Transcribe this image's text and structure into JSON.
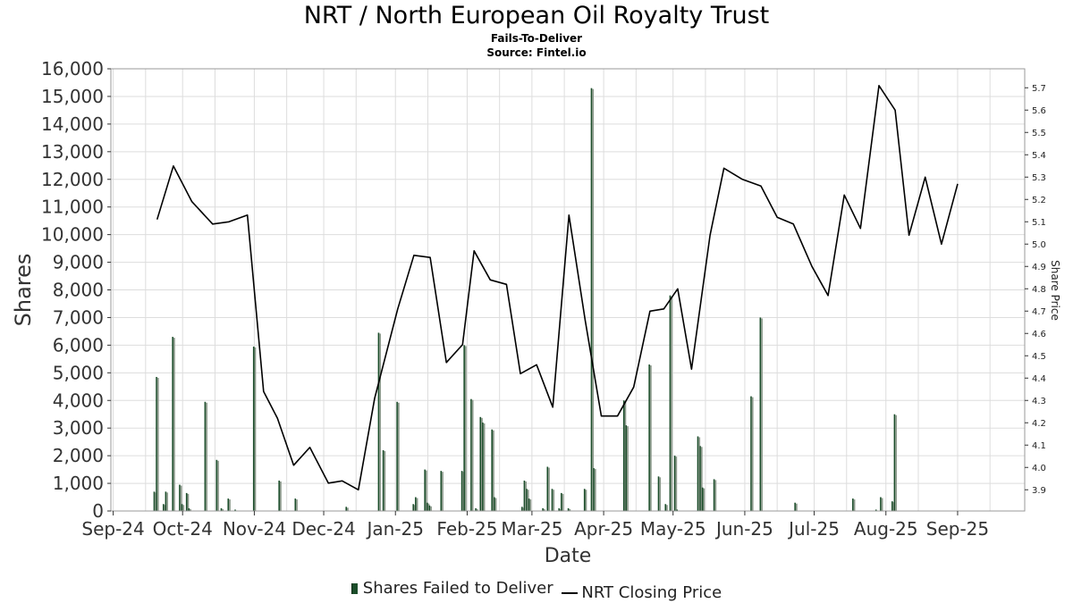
{
  "header": {
    "title": "NRT / North European Oil Royalty Trust",
    "subtitle": "Fails-To-Deliver",
    "source": "Source: Fintel.io"
  },
  "legend": {
    "bars_label": "Shares Failed to Deliver",
    "line_label": "NRT Closing Price"
  },
  "colors": {
    "bar": "#1b4d2a",
    "bar_shade": "#8c9a8c",
    "line": "#000000",
    "grid": "#dddddd",
    "frame": "#999999"
  },
  "chart_data": {
    "type": "bar",
    "xlabel": "Date",
    "ylabel": "Shares",
    "y2label": "Share Price",
    "ylim": [
      0,
      16000
    ],
    "y2lim": [
      3.805,
      5.785
    ],
    "grid": true,
    "legend_position": "bottom",
    "x_tick_labels": [
      "Sep-24",
      "Oct-24",
      "Nov-24",
      "Dec-24",
      "Jan-25",
      "Feb-25",
      "Mar-25",
      "Apr-25",
      "May-25",
      "Jun-25",
      "Jul-25",
      "Aug-25",
      "Sep-25"
    ],
    "y_tick_labels": [
      "0",
      "1,000",
      "2,000",
      "3,000",
      "4,000",
      "5,000",
      "6,000",
      "7,000",
      "8,000",
      "9,000",
      "10,000",
      "11,000",
      "12,000",
      "13,000",
      "14,000",
      "15,000",
      "16,000"
    ],
    "y2_tick_labels": [
      "3.9",
      "4.0",
      "4.1",
      "4.2",
      "4.3",
      "4.4",
      "4.5",
      "4.6",
      "4.7",
      "4.8",
      "4.9",
      "5.0",
      "5.1",
      "5.2",
      "5.3",
      "5.4",
      "5.5",
      "5.6",
      "5.7"
    ],
    "x_range": [
      "2024-08-31",
      "2025-09-30"
    ],
    "series": [
      {
        "name": "Shares Failed to Deliver",
        "type": "bar",
        "points": [
          [
            "2024-09-19",
            700
          ],
          [
            "2024-09-20",
            4850
          ],
          [
            "2024-09-23",
            250
          ],
          [
            "2024-09-24",
            700
          ],
          [
            "2024-09-27",
            6300
          ],
          [
            "2024-09-30",
            950
          ],
          [
            "2024-10-01",
            250
          ],
          [
            "2024-10-03",
            650
          ],
          [
            "2024-10-04",
            100
          ],
          [
            "2024-10-11",
            3950
          ],
          [
            "2024-10-16",
            1850
          ],
          [
            "2024-10-18",
            100
          ],
          [
            "2024-10-21",
            450
          ],
          [
            "2024-10-24",
            50
          ],
          [
            "2024-11-01",
            5950
          ],
          [
            "2024-11-12",
            1100
          ],
          [
            "2024-11-19",
            450
          ],
          [
            "2024-12-11",
            150
          ],
          [
            "2024-12-25",
            6450
          ],
          [
            "2024-12-27",
            2200
          ],
          [
            "2025-01-02",
            3950
          ],
          [
            "2025-01-09",
            250
          ],
          [
            "2025-01-10",
            500
          ],
          [
            "2025-01-14",
            1500
          ],
          [
            "2025-01-15",
            300
          ],
          [
            "2025-01-16",
            200
          ],
          [
            "2025-01-21",
            1450
          ],
          [
            "2025-01-30",
            1450
          ],
          [
            "2025-01-31",
            6000
          ],
          [
            "2025-02-03",
            4050
          ],
          [
            "2025-02-05",
            100
          ],
          [
            "2025-02-07",
            3400
          ],
          [
            "2025-02-08",
            3200
          ],
          [
            "2025-02-12",
            2950
          ],
          [
            "2025-02-13",
            500
          ],
          [
            "2025-02-25",
            150
          ],
          [
            "2025-02-26",
            1100
          ],
          [
            "2025-02-27",
            800
          ],
          [
            "2025-02-28",
            450
          ],
          [
            "2025-03-06",
            100
          ],
          [
            "2025-03-08",
            1600
          ],
          [
            "2025-03-10",
            800
          ],
          [
            "2025-03-13",
            100
          ],
          [
            "2025-03-14",
            650
          ],
          [
            "2025-03-17",
            100
          ],
          [
            "2025-03-24",
            800
          ],
          [
            "2025-03-27",
            15300
          ],
          [
            "2025-03-28",
            1550
          ],
          [
            "2025-04-10",
            4000
          ],
          [
            "2025-04-11",
            3100
          ],
          [
            "2025-04-21",
            5300
          ],
          [
            "2025-04-25",
            1250
          ],
          [
            "2025-04-28",
            250
          ],
          [
            "2025-04-30",
            7800
          ],
          [
            "2025-05-02",
            2000
          ],
          [
            "2025-05-03",
            50
          ],
          [
            "2025-05-12",
            2700
          ],
          [
            "2025-05-13",
            2350
          ],
          [
            "2025-05-14",
            850
          ],
          [
            "2025-05-19",
            1150
          ],
          [
            "2025-06-04",
            4150
          ],
          [
            "2025-06-08",
            7000
          ],
          [
            "2025-06-23",
            300
          ],
          [
            "2025-07-18",
            450
          ],
          [
            "2025-07-28",
            50
          ],
          [
            "2025-07-30",
            500
          ],
          [
            "2025-08-04",
            350
          ],
          [
            "2025-08-05",
            3500
          ]
        ]
      },
      {
        "name": "NRT Closing Price",
        "type": "line",
        "points": [
          [
            "2024-09-20",
            5.11
          ],
          [
            "2024-09-27",
            5.35
          ],
          [
            "2024-10-05",
            5.19
          ],
          [
            "2024-10-14",
            5.09
          ],
          [
            "2024-10-21",
            5.1
          ],
          [
            "2024-10-29",
            5.13
          ],
          [
            "2024-11-05",
            4.34
          ],
          [
            "2024-11-11",
            4.22
          ],
          [
            "2024-11-18",
            4.01
          ],
          [
            "2024-11-25",
            4.09
          ],
          [
            "2024-12-03",
            3.93
          ],
          [
            "2024-12-09",
            3.94
          ],
          [
            "2024-12-16",
            3.9
          ],
          [
            "2024-12-23",
            4.31
          ],
          [
            "2025-01-02",
            4.71
          ],
          [
            "2025-01-09",
            4.95
          ],
          [
            "2025-01-16",
            4.94
          ],
          [
            "2025-01-23",
            4.47
          ],
          [
            "2025-01-30",
            4.55
          ],
          [
            "2025-02-04",
            4.97
          ],
          [
            "2025-02-11",
            4.84
          ],
          [
            "2025-02-18",
            4.82
          ],
          [
            "2025-02-24",
            4.42
          ],
          [
            "2025-03-03",
            4.46
          ],
          [
            "2025-03-10",
            4.27
          ],
          [
            "2025-03-17",
            5.13
          ],
          [
            "2025-03-24",
            4.66
          ],
          [
            "2025-03-31",
            4.23
          ],
          [
            "2025-04-07",
            4.23
          ],
          [
            "2025-04-14",
            4.36
          ],
          [
            "2025-04-21",
            4.7
          ],
          [
            "2025-04-27",
            4.71
          ],
          [
            "2025-05-03",
            4.8
          ],
          [
            "2025-05-09",
            4.44
          ],
          [
            "2025-05-17",
            5.04
          ],
          [
            "2025-05-23",
            5.34
          ],
          [
            "2025-05-31",
            5.29
          ],
          [
            "2025-06-08",
            5.26
          ],
          [
            "2025-06-15",
            5.12
          ],
          [
            "2025-06-22",
            5.09
          ],
          [
            "2025-06-30",
            4.9
          ],
          [
            "2025-07-07",
            4.77
          ],
          [
            "2025-07-14",
            5.22
          ],
          [
            "2025-07-21",
            5.07
          ],
          [
            "2025-07-29",
            5.71
          ],
          [
            "2025-08-05",
            5.6
          ],
          [
            "2025-08-11",
            5.04
          ],
          [
            "2025-08-18",
            5.3
          ],
          [
            "2025-08-25",
            5.0
          ],
          [
            "2025-09-01",
            5.27
          ]
        ]
      }
    ]
  }
}
